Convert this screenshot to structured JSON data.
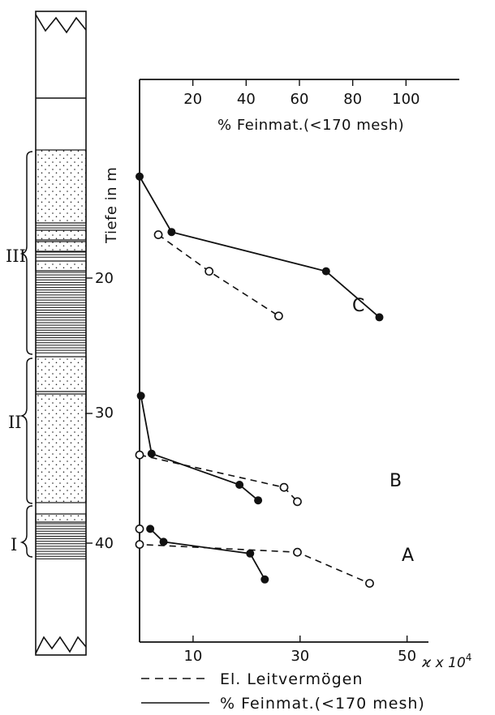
{
  "chart_data": {
    "type": "line",
    "top_axis": {
      "title": "% Feinmat.(<170 mesh)",
      "tick_labels": [
        "20",
        "40",
        "60",
        "80",
        "100"
      ],
      "range": [
        0,
        120
      ]
    },
    "bottom_axis": {
      "title": "ϰ x 10",
      "title_exponent": "4",
      "tick_labels": [
        "10",
        "30",
        "50"
      ],
      "range": [
        0,
        54
      ]
    },
    "depth_axis": {
      "title": "Tiefe in m",
      "tick_labels": [
        "20",
        "30",
        "40"
      ],
      "unit": "m"
    },
    "stratigraphy": {
      "zones": [
        "III",
        "II",
        "I"
      ]
    },
    "legend": {
      "dashed": "El. Leitvermögen",
      "solid": "% Feinmat.(<170 mesh)"
    },
    "groups": [
      {
        "label": "C",
        "solid": [
          [
            0,
            12.5
          ],
          [
            12,
            16.6
          ],
          [
            70,
            19.5
          ],
          [
            90,
            22.9
          ]
        ],
        "dashed": [
          [
            3.5,
            16.8
          ],
          [
            13,
            19.5
          ],
          [
            26,
            22.8
          ]
        ]
      },
      {
        "label": "B",
        "solid": [
          [
            0.5,
            28.7
          ],
          [
            4.5,
            33.1
          ],
          [
            37.5,
            35.5
          ],
          [
            44.5,
            36.7
          ]
        ],
        "dashed": [
          [
            0,
            33.2
          ],
          [
            27,
            35.7
          ],
          [
            29.5,
            36.8
          ]
        ]
      },
      {
        "label": "A",
        "solid": [
          [
            4,
            38.9
          ],
          [
            9,
            39.9
          ],
          [
            41.5,
            40.8
          ],
          [
            47,
            42.8
          ]
        ],
        "dashed": [
          [
            0,
            38.9
          ],
          [
            0,
            40.1
          ],
          [
            29.5,
            40.7
          ],
          [
            43,
            43.1
          ]
        ]
      }
    ]
  }
}
